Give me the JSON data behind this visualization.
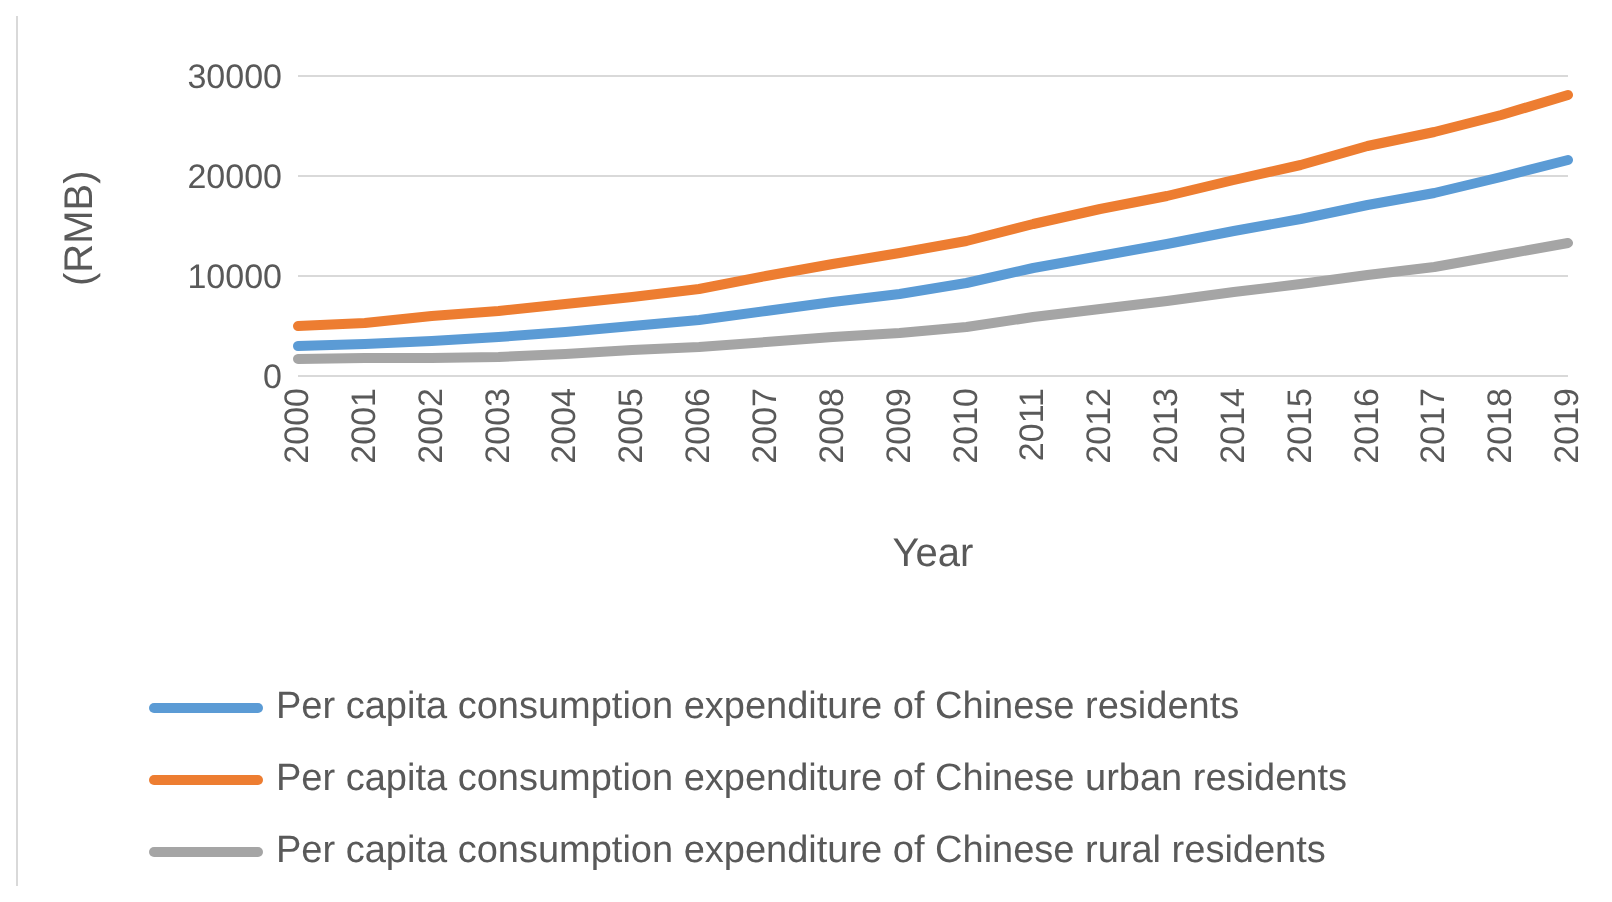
{
  "chart_data": {
    "type": "line",
    "xlabel": "Year",
    "ylabel": "(RMB)",
    "categories": [
      "2000",
      "2001",
      "2002",
      "2003",
      "2004",
      "2005",
      "2006",
      "2007",
      "2008",
      "2009",
      "2010",
      "2011",
      "2012",
      "2013",
      "2014",
      "2015",
      "2016",
      "2017",
      "2018",
      "2019"
    ],
    "series": [
      {
        "name": "Per capita consumption expenditure of Chinese residents",
        "color": "#5b9bd5",
        "values": [
          3000,
          3200,
          3500,
          3900,
          4400,
          5000,
          5600,
          6500,
          7400,
          8200,
          9300,
          10800,
          12000,
          13200,
          14500,
          15700,
          17100,
          18300,
          19900,
          21600
        ]
      },
      {
        "name": "Per capita consumption expenditure of Chinese urban residents",
        "color": "#ed7d31",
        "values": [
          5000,
          5300,
          6000,
          6500,
          7200,
          7900,
          8700,
          10000,
          11200,
          12300,
          13500,
          15200,
          16700,
          18000,
          19600,
          21100,
          23000,
          24400,
          26100,
          28100
        ]
      },
      {
        "name": "Per capita consumption expenditure of Chinese rural residents",
        "color": "#a5a5a5",
        "values": [
          1700,
          1800,
          1800,
          1900,
          2200,
          2600,
          2900,
          3400,
          3900,
          4300,
          4900,
          5900,
          6700,
          7500,
          8400,
          9200,
          10100,
          10900,
          12100,
          13300
        ]
      }
    ],
    "ylim": [
      0,
      30000
    ],
    "yticks": [
      0,
      10000,
      20000,
      30000
    ],
    "grid": "y",
    "legend": "bottom",
    "marker": "none",
    "line_style": "solid"
  }
}
